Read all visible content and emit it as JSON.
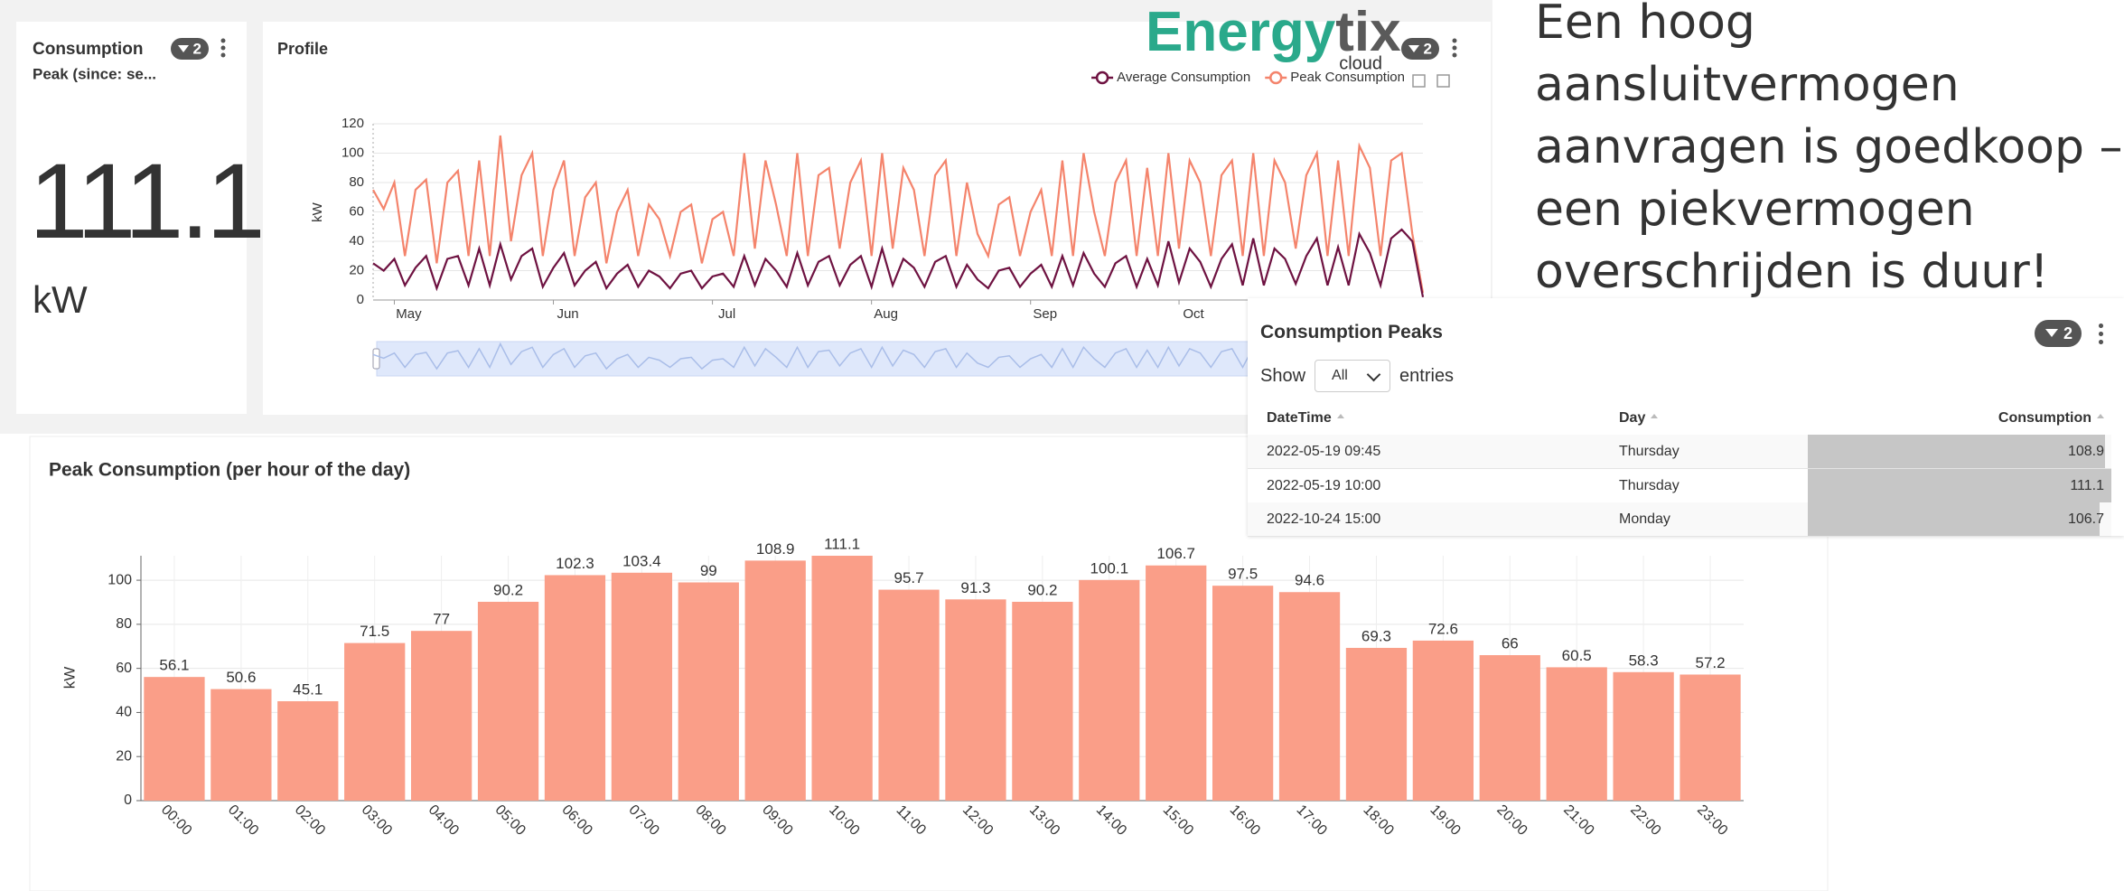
{
  "kpi": {
    "title": "Consumption",
    "subtitle": "Peak (since: se...",
    "value": "111.1",
    "unit": "kW",
    "filter_count": "2"
  },
  "logo": {
    "part1": "Energy",
    "part2": "tix",
    "sub": "cloud"
  },
  "headline_lines": [
    "Een hoog",
    "aansluitvermogen",
    "aanvragen is goedkoop –",
    "een piekvermogen",
    "overschrijden is duur!"
  ],
  "table": {
    "title": "Consumption Peaks",
    "filter_count": "2",
    "show": "Show",
    "page_size": "All",
    "entries": "entries",
    "columns": [
      "DateTime",
      "Day",
      "Consumption"
    ],
    "rows": [
      [
        "2022-05-19 09:45",
        "Thursday",
        108.9
      ],
      [
        "2022-05-19 10:00",
        "Thursday",
        111.1
      ],
      [
        "2022-10-24 15:00",
        "Monday",
        106.7
      ]
    ]
  },
  "chart_data": [
    {
      "type": "line",
      "title": "Profile",
      "filter_count": "2",
      "ylabel": "kW",
      "categories": [
        null,
        null,
        "May",
        null,
        null,
        null,
        null,
        null,
        null,
        null,
        null,
        null,
        null,
        null,
        null,
        null,
        null,
        "Jun",
        null,
        null,
        null,
        null,
        null,
        null,
        null,
        null,
        null,
        null,
        null,
        null,
        null,
        null,
        "Jul",
        null,
        null,
        null,
        null,
        null,
        null,
        null,
        null,
        null,
        null,
        null,
        null,
        null,
        null,
        "Aug",
        null,
        null,
        null,
        null,
        null,
        null,
        null,
        null,
        null,
        null,
        null,
        null,
        null,
        null,
        "Sep",
        null,
        null,
        null,
        null,
        null,
        null,
        null,
        null,
        null,
        null,
        null,
        null,
        null,
        "Oct",
        null,
        null,
        null,
        null,
        null,
        null,
        null,
        null,
        null,
        null,
        null,
        null,
        null,
        null,
        null,
        null,
        null,
        null,
        null,
        null,
        null,
        null,
        null
      ],
      "series": [
        {
          "name": "Average Consumption",
          "color": "#6e1241",
          "values": [
            25,
            20,
            28,
            10,
            22,
            30,
            8,
            28,
            30,
            10,
            35,
            10,
            38,
            14,
            30,
            35,
            9,
            22,
            32,
            10,
            20,
            26,
            8,
            18,
            24,
            9,
            20,
            16,
            8,
            18,
            20,
            8,
            16,
            18,
            9,
            30,
            10,
            28,
            20,
            9,
            32,
            10,
            26,
            30,
            10,
            24,
            30,
            9,
            35,
            10,
            28,
            22,
            9,
            26,
            30,
            9,
            24,
            14,
            8,
            20,
            22,
            9,
            18,
            24,
            9,
            30,
            10,
            32,
            18,
            9,
            25,
            30,
            9,
            28,
            10,
            40,
            12,
            35,
            26,
            9,
            28,
            38,
            10,
            42,
            10,
            35,
            28,
            11,
            30,
            42,
            10,
            36,
            10,
            45,
            32,
            10,
            42,
            48,
            40,
            2
          ]
        },
        {
          "name": "Peak Consumption",
          "color": "#f4846c",
          "values": [
            75,
            62,
            80,
            30,
            75,
            82,
            25,
            80,
            88,
            30,
            95,
            30,
            112,
            40,
            85,
            100,
            30,
            75,
            95,
            30,
            70,
            80,
            25,
            60,
            75,
            30,
            65,
            55,
            30,
            60,
            65,
            25,
            55,
            60,
            30,
            100,
            35,
            95,
            65,
            30,
            100,
            30,
            85,
            90,
            35,
            80,
            95,
            30,
            100,
            35,
            90,
            75,
            30,
            85,
            95,
            30,
            80,
            45,
            30,
            65,
            70,
            30,
            60,
            75,
            30,
            95,
            30,
            100,
            60,
            30,
            80,
            95,
            30,
            90,
            30,
            100,
            35,
            95,
            80,
            30,
            85,
            95,
            30,
            100,
            30,
            95,
            80,
            35,
            85,
            100,
            30,
            95,
            30,
            105,
            90,
            30,
            95,
            100,
            45,
            5
          ]
        }
      ],
      "ylim": [
        0,
        120
      ],
      "yticks": [
        0,
        20,
        40,
        60,
        80,
        100,
        120
      ],
      "grid": true,
      "legend": "top-right"
    },
    {
      "type": "bar",
      "title": "Peak Consumption (per hour of the day)",
      "ylabel": "kW",
      "color": "#fa9e88",
      "categories": [
        "00:00",
        "01:00",
        "02:00",
        "03:00",
        "04:00",
        "05:00",
        "06:00",
        "07:00",
        "08:00",
        "09:00",
        "10:00",
        "11:00",
        "12:00",
        "13:00",
        "14:00",
        "15:00",
        "16:00",
        "17:00",
        "18:00",
        "19:00",
        "20:00",
        "21:00",
        "22:00",
        "23:00"
      ],
      "values": [
        56.1,
        50.6,
        45.1,
        71.5,
        77,
        90.2,
        102.3,
        103.4,
        99,
        108.9,
        111.1,
        95.7,
        91.3,
        90.2,
        100.1,
        106.7,
        97.5,
        94.6,
        69.3,
        72.6,
        66,
        60.5,
        58.3,
        57.2
      ],
      "ylim": [
        0,
        111.1
      ],
      "yticks": [
        0,
        20,
        40,
        60,
        80,
        100
      ],
      "grid": true
    }
  ]
}
